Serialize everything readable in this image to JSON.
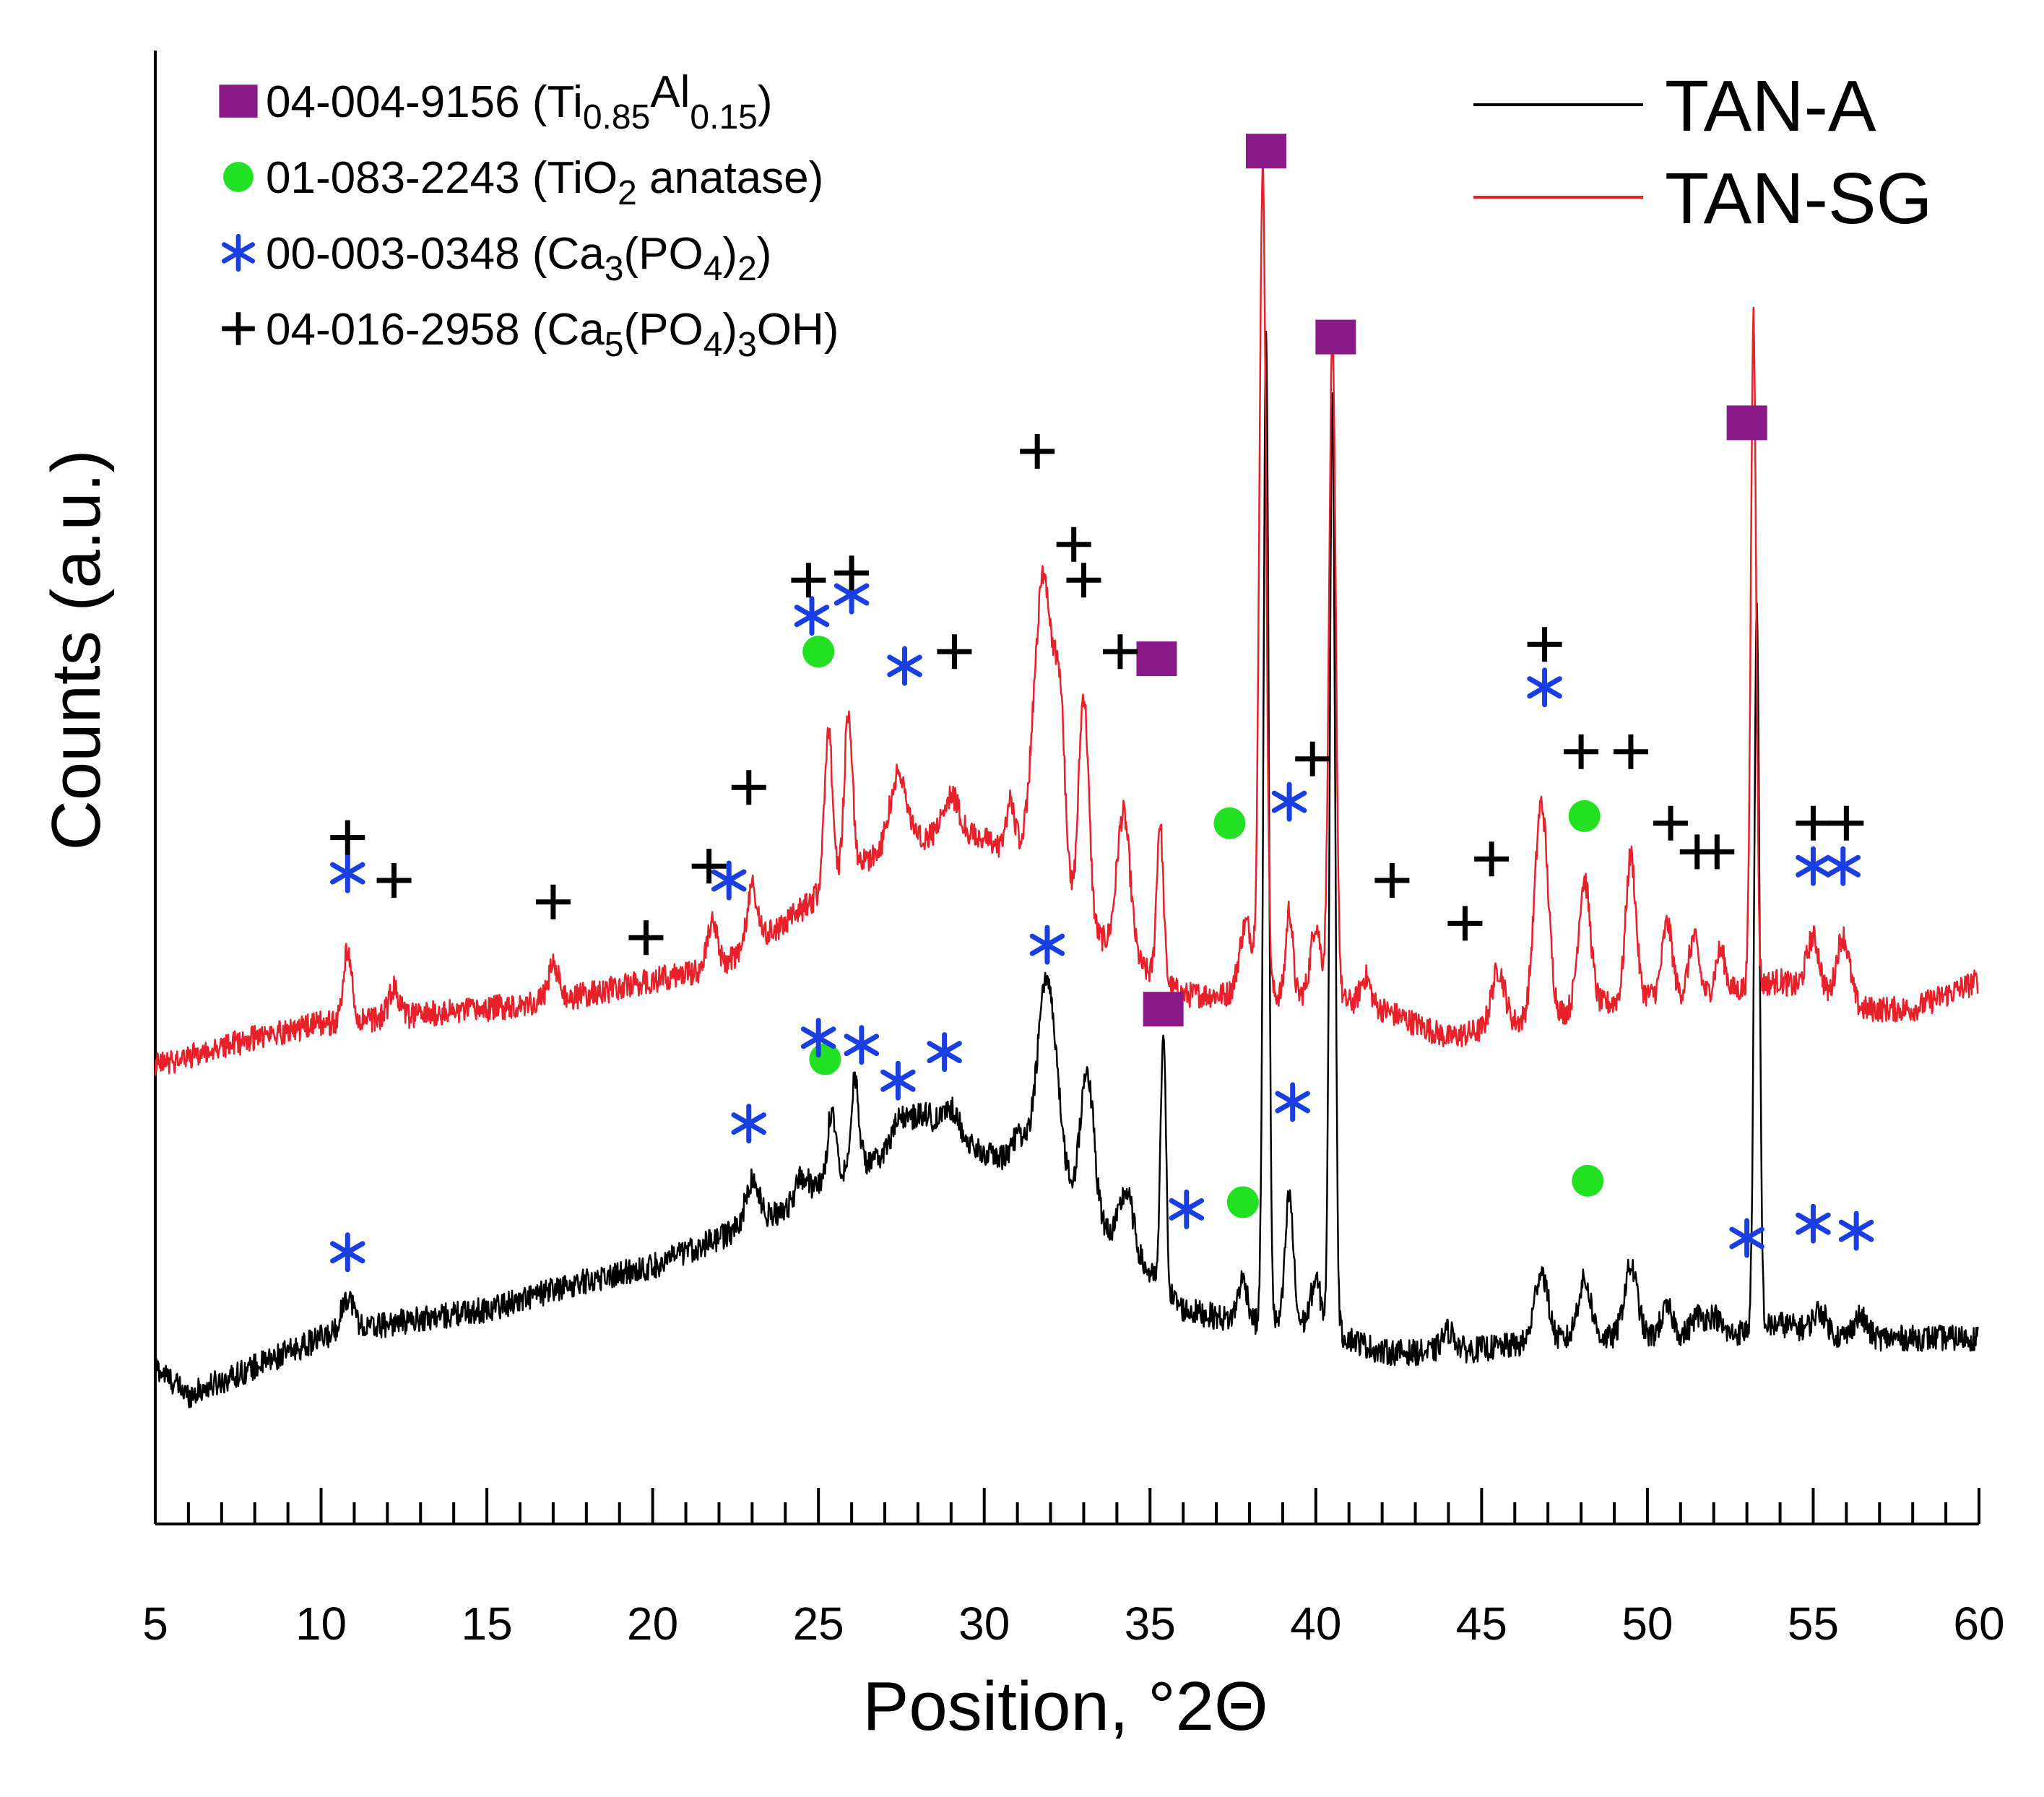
{
  "chart_data": {
    "type": "line",
    "title": "",
    "xlabel": "Position, °2Θ",
    "ylabel": "Counts (a.u.)",
    "xlim": [
      5,
      60
    ],
    "ylim": [
      0,
      100
    ],
    "x_ticks": [
      5,
      10,
      15,
      20,
      25,
      30,
      35,
      40,
      45,
      50,
      55,
      60
    ],
    "x_minor_step": 1,
    "x_tick_labels": [
      "5",
      "10",
      "15",
      "20",
      "25",
      "30",
      "35",
      "40",
      "45",
      "50",
      "55",
      "60"
    ],
    "legend_position": "top-right",
    "series": [
      {
        "name": "TAN-A",
        "color": "#000000",
        "baseline": [
          [
            5,
            11
          ],
          [
            6,
            9
          ],
          [
            8,
            11
          ],
          [
            10,
            13
          ],
          [
            12,
            14
          ],
          [
            15,
            15
          ],
          [
            18,
            17
          ],
          [
            20,
            18
          ],
          [
            22,
            20
          ],
          [
            24,
            22
          ],
          [
            26,
            25
          ],
          [
            28,
            26
          ],
          [
            30,
            26
          ],
          [
            32,
            24
          ],
          [
            34,
            20
          ],
          [
            36,
            15
          ],
          [
            38,
            14
          ],
          [
            40,
            14
          ],
          [
            42,
            12
          ],
          [
            44,
            12
          ],
          [
            46,
            12.5
          ],
          [
            48,
            13
          ],
          [
            50,
            13
          ],
          [
            52,
            13
          ],
          [
            54,
            14
          ],
          [
            56,
            13
          ],
          [
            58,
            13
          ],
          [
            60,
            13
          ]
        ],
        "peaks": [
          [
            10.8,
            2.5,
            0.2
          ],
          [
            23,
            3,
            0.2
          ],
          [
            24.5,
            1.5,
            0.2
          ],
          [
            25.4,
            5,
            0.12
          ],
          [
            26.1,
            6,
            0.12
          ],
          [
            27.5,
            2.5,
            0.3
          ],
          [
            28.2,
            2.5,
            0.3
          ],
          [
            29,
            3,
            0.3
          ],
          [
            31,
            2,
            0.2
          ],
          [
            31.9,
            14,
            0.3
          ],
          [
            33.1,
            10,
            0.2
          ],
          [
            34.3,
            4,
            0.2
          ],
          [
            35.4,
            18,
            0.08
          ],
          [
            37.8,
            3,
            0.15
          ],
          [
            38.5,
            69,
            0.08
          ],
          [
            39.2,
            9,
            0.12
          ],
          [
            40,
            3,
            0.15
          ],
          [
            40.5,
            66,
            0.08
          ],
          [
            44,
            1.5,
            0.2
          ],
          [
            46.8,
            5,
            0.2
          ],
          [
            48.1,
            4,
            0.2
          ],
          [
            49.5,
            5,
            0.2
          ],
          [
            50.6,
            2,
            0.2
          ],
          [
            51.5,
            1.5,
            0.2
          ],
          [
            52,
            1.5,
            0.2
          ],
          [
            53.3,
            50,
            0.08
          ],
          [
            55.2,
            1.5,
            0.2
          ],
          [
            56.4,
            1.5,
            0.2
          ]
        ],
        "noise_amplitude": 0.9
      },
      {
        "name": "TAN-SG",
        "color": "#e8202a",
        "baseline": [
          [
            5,
            32
          ],
          [
            8,
            34
          ],
          [
            10,
            35
          ],
          [
            15,
            36
          ],
          [
            18,
            37
          ],
          [
            20,
            38
          ],
          [
            22,
            39
          ],
          [
            24,
            42
          ],
          [
            26,
            46
          ],
          [
            28,
            48
          ],
          [
            30,
            48
          ],
          [
            32,
            44
          ],
          [
            34,
            40
          ],
          [
            36,
            37
          ],
          [
            38,
            37
          ],
          [
            40,
            37
          ],
          [
            42,
            36
          ],
          [
            44,
            34
          ],
          [
            46,
            35
          ],
          [
            48,
            36
          ],
          [
            50,
            37
          ],
          [
            52,
            37
          ],
          [
            54,
            38
          ],
          [
            56,
            36
          ],
          [
            58,
            36
          ],
          [
            60,
            38
          ]
        ],
        "peaks": [
          [
            10.8,
            5,
            0.12
          ],
          [
            12.2,
            2,
            0.15
          ],
          [
            17,
            2.5,
            0.15
          ],
          [
            21.8,
            3,
            0.15
          ],
          [
            23,
            4,
            0.15
          ],
          [
            25.3,
            11,
            0.12
          ],
          [
            25.9,
            11,
            0.12
          ],
          [
            27.4,
            5,
            0.25
          ],
          [
            29,
            3,
            0.25
          ],
          [
            30.8,
            4,
            0.15
          ],
          [
            31.8,
            22,
            0.3
          ],
          [
            32.3,
            10,
            0.15
          ],
          [
            33,
            16,
            0.15
          ],
          [
            34.2,
            10,
            0.2
          ],
          [
            35.3,
            11,
            0.1
          ],
          [
            37.9,
            5,
            0.2
          ],
          [
            38.4,
            58,
            0.1
          ],
          [
            39.2,
            6,
            0.1
          ],
          [
            40,
            5,
            0.15
          ],
          [
            40.5,
            46,
            0.1
          ],
          [
            41.5,
            2,
            0.15
          ],
          [
            45.5,
            4,
            0.2
          ],
          [
            46.8,
            15,
            0.2
          ],
          [
            48.1,
            9,
            0.18
          ],
          [
            49.5,
            10,
            0.15
          ],
          [
            50.6,
            5,
            0.15
          ],
          [
            51.4,
            4,
            0.15
          ],
          [
            52.2,
            3,
            0.15
          ],
          [
            53.2,
            47,
            0.08
          ],
          [
            55,
            4,
            0.2
          ],
          [
            55.9,
            5,
            0.2
          ]
        ],
        "noise_amplitude": 0.9
      }
    ],
    "markers": [
      {
        "series": "TAN-A",
        "phase": "04-004-9156",
        "symbol": "square",
        "x": 35.4,
        "y": 36
      },
      {
        "series": "TAN-A",
        "phase": "01-083-2243",
        "symbol": "circle",
        "x": 25.2,
        "y": 32.5
      },
      {
        "series": "TAN-A",
        "phase": "01-083-2243",
        "symbol": "circle",
        "x": 37.8,
        "y": 22.5
      },
      {
        "series": "TAN-A",
        "phase": "01-083-2243",
        "symbol": "circle",
        "x": 48.2,
        "y": 24
      },
      {
        "series": "TAN-A",
        "phase": "00-003-0348",
        "symbol": "star",
        "x": 10.8,
        "y": 19
      },
      {
        "series": "TAN-A",
        "phase": "00-003-0348",
        "symbol": "star",
        "x": 22.9,
        "y": 28
      },
      {
        "series": "TAN-A",
        "phase": "00-003-0348",
        "symbol": "star",
        "x": 25,
        "y": 34
      },
      {
        "series": "TAN-A",
        "phase": "00-003-0348",
        "symbol": "star",
        "x": 26.3,
        "y": 33.5
      },
      {
        "series": "TAN-A",
        "phase": "00-003-0348",
        "symbol": "star",
        "x": 27.4,
        "y": 31
      },
      {
        "series": "TAN-A",
        "phase": "00-003-0348",
        "symbol": "star",
        "x": 28.8,
        "y": 33
      },
      {
        "series": "TAN-A",
        "phase": "00-003-0348",
        "symbol": "star",
        "x": 31.9,
        "y": 40.5
      },
      {
        "series": "TAN-A",
        "phase": "00-003-0348",
        "symbol": "star",
        "x": 36.1,
        "y": 22
      },
      {
        "series": "TAN-A",
        "phase": "00-003-0348",
        "symbol": "star",
        "x": 39.3,
        "y": 29.5
      },
      {
        "series": "TAN-A",
        "phase": "00-003-0348",
        "symbol": "star",
        "x": 53,
        "y": 20
      },
      {
        "series": "TAN-A",
        "phase": "00-003-0348",
        "symbol": "star",
        "x": 55,
        "y": 21
      },
      {
        "series": "TAN-A",
        "phase": "00-003-0348",
        "symbol": "star",
        "x": 56.3,
        "y": 20.5
      },
      {
        "series": "TAN-SG",
        "phase": "04-004-9156",
        "symbol": "square",
        "x": 35.2,
        "y": 60.5
      },
      {
        "series": "TAN-SG",
        "phase": "04-004-9156",
        "symbol": "square",
        "x": 38.5,
        "y": 96
      },
      {
        "series": "TAN-SG",
        "phase": "04-004-9156",
        "symbol": "square",
        "x": 40.6,
        "y": 83
      },
      {
        "series": "TAN-SG",
        "phase": "04-004-9156",
        "symbol": "square",
        "x": 53,
        "y": 77
      },
      {
        "series": "TAN-SG",
        "phase": "01-083-2243",
        "symbol": "circle",
        "x": 25,
        "y": 61
      },
      {
        "series": "TAN-SG",
        "phase": "01-083-2243",
        "symbol": "circle",
        "x": 37.4,
        "y": 49
      },
      {
        "series": "TAN-SG",
        "phase": "01-083-2243",
        "symbol": "circle",
        "x": 48.1,
        "y": 49.5
      },
      {
        "series": "TAN-SG",
        "phase": "00-003-0348",
        "symbol": "star",
        "x": 10.8,
        "y": 45.5
      },
      {
        "series": "TAN-SG",
        "phase": "00-003-0348",
        "symbol": "star",
        "x": 22.3,
        "y": 45
      },
      {
        "series": "TAN-SG",
        "phase": "00-003-0348",
        "symbol": "star",
        "x": 24.8,
        "y": 63.5
      },
      {
        "series": "TAN-SG",
        "phase": "00-003-0348",
        "symbol": "star",
        "x": 26,
        "y": 65
      },
      {
        "series": "TAN-SG",
        "phase": "00-003-0348",
        "symbol": "star",
        "x": 27.6,
        "y": 60
      },
      {
        "series": "TAN-SG",
        "phase": "00-003-0348",
        "symbol": "star",
        "x": 39.2,
        "y": 50.5
      },
      {
        "series": "TAN-SG",
        "phase": "00-003-0348",
        "symbol": "star",
        "x": 46.9,
        "y": 58.5
      },
      {
        "series": "TAN-SG",
        "phase": "00-003-0348",
        "symbol": "star",
        "x": 55,
        "y": 46
      },
      {
        "series": "TAN-SG",
        "phase": "00-003-0348",
        "symbol": "star",
        "x": 55.9,
        "y": 46
      },
      {
        "series": "TAN-SG",
        "phase": "04-016-2958",
        "symbol": "plus",
        "x": 10.8,
        "y": 48
      },
      {
        "series": "TAN-SG",
        "phase": "04-016-2958",
        "symbol": "plus",
        "x": 12.2,
        "y": 45
      },
      {
        "series": "TAN-SG",
        "phase": "04-016-2958",
        "symbol": "plus",
        "x": 17,
        "y": 43.5
      },
      {
        "series": "TAN-SG",
        "phase": "04-016-2958",
        "symbol": "plus",
        "x": 19.8,
        "y": 41
      },
      {
        "series": "TAN-SG",
        "phase": "04-016-2958",
        "symbol": "plus",
        "x": 21.7,
        "y": 46
      },
      {
        "series": "TAN-SG",
        "phase": "04-016-2958",
        "symbol": "plus",
        "x": 22.9,
        "y": 51.5
      },
      {
        "series": "TAN-SG",
        "phase": "04-016-2958",
        "symbol": "plus",
        "x": 24.7,
        "y": 66
      },
      {
        "series": "TAN-SG",
        "phase": "04-016-2958",
        "symbol": "plus",
        "x": 26,
        "y": 66.5
      },
      {
        "series": "TAN-SG",
        "phase": "04-016-2958",
        "symbol": "plus",
        "x": 29.1,
        "y": 61
      },
      {
        "series": "TAN-SG",
        "phase": "04-016-2958",
        "symbol": "plus",
        "x": 31.6,
        "y": 75
      },
      {
        "series": "TAN-SG",
        "phase": "04-016-2958",
        "symbol": "plus",
        "x": 32.7,
        "y": 68.5
      },
      {
        "series": "TAN-SG",
        "phase": "04-016-2958",
        "symbol": "plus",
        "x": 33,
        "y": 66
      },
      {
        "series": "TAN-SG",
        "phase": "04-016-2958",
        "symbol": "plus",
        "x": 34.1,
        "y": 61
      },
      {
        "series": "TAN-SG",
        "phase": "04-016-2958",
        "symbol": "plus",
        "x": 39.9,
        "y": 53.5
      },
      {
        "series": "TAN-SG",
        "phase": "04-016-2958",
        "symbol": "plus",
        "x": 42.3,
        "y": 45
      },
      {
        "series": "TAN-SG",
        "phase": "04-016-2958",
        "symbol": "plus",
        "x": 44.5,
        "y": 42
      },
      {
        "series": "TAN-SG",
        "phase": "04-016-2958",
        "symbol": "plus",
        "x": 45.3,
        "y": 46.5
      },
      {
        "series": "TAN-SG",
        "phase": "04-016-2958",
        "symbol": "plus",
        "x": 46.9,
        "y": 61.5
      },
      {
        "series": "TAN-SG",
        "phase": "04-016-2958",
        "symbol": "plus",
        "x": 48,
        "y": 54
      },
      {
        "series": "TAN-SG",
        "phase": "04-016-2958",
        "symbol": "plus",
        "x": 49.5,
        "y": 54
      },
      {
        "series": "TAN-SG",
        "phase": "04-016-2958",
        "symbol": "plus",
        "x": 50.7,
        "y": 49
      },
      {
        "series": "TAN-SG",
        "phase": "04-016-2958",
        "symbol": "plus",
        "x": 51.5,
        "y": 47
      },
      {
        "series": "TAN-SG",
        "phase": "04-016-2958",
        "symbol": "plus",
        "x": 52.1,
        "y": 47
      },
      {
        "series": "TAN-SG",
        "phase": "04-016-2958",
        "symbol": "plus",
        "x": 55,
        "y": 49
      },
      {
        "series": "TAN-SG",
        "phase": "04-016-2958",
        "symbol": "plus",
        "x": 56,
        "y": 49
      }
    ],
    "phase_legend": [
      {
        "symbol": "square",
        "color": "#8b1a89",
        "code": "04-004-9156",
        "formula_parts": [
          [
            "(Ti",
            ""
          ],
          [
            "0.85",
            "sub"
          ],
          [
            "Al",
            "sup"
          ],
          [
            "0.15",
            "sub"
          ],
          [
            ")",
            ""
          ]
        ]
      },
      {
        "symbol": "circle",
        "color": "#22e022",
        "code": "01-083-2243",
        "formula_parts": [
          [
            "(TiO",
            ""
          ],
          [
            "2",
            "sub"
          ],
          [
            " anatase)",
            ""
          ]
        ]
      },
      {
        "symbol": "star",
        "color": "#1a3fe0",
        "code": "00-003-0348",
        "formula_parts": [
          [
            "(Ca",
            ""
          ],
          [
            "3",
            "sub"
          ],
          [
            "(PO",
            ""
          ],
          [
            "4",
            "sub"
          ],
          [
            ")",
            ""
          ],
          [
            "2",
            "sub"
          ],
          [
            ")",
            ""
          ]
        ]
      },
      {
        "symbol": "plus",
        "color": "#000000",
        "code": "04-016-2958",
        "formula_parts": [
          [
            "(Ca",
            ""
          ],
          [
            "5",
            "sub"
          ],
          [
            "(PO",
            ""
          ],
          [
            "4",
            "sub"
          ],
          [
            ")",
            ""
          ],
          [
            "3",
            "sub"
          ],
          [
            "OH)",
            ""
          ]
        ]
      }
    ]
  }
}
